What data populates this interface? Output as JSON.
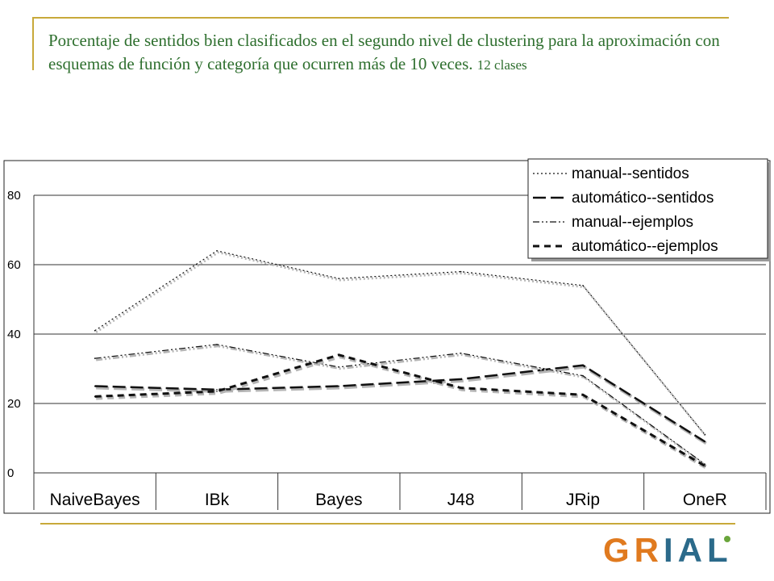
{
  "slide": {
    "title_main": "Porcentaje de sentidos bien clasificados en el segundo nivel de clustering para la aproximación con esquemas de función y categoría que ocurren más de 10 veces.",
    "title_small": "12 clases",
    "accent_color": "#c8a93a",
    "title_color": "#2e6f2e"
  },
  "logo": {
    "text": "GRIAL",
    "gr_color": "#e07a1f",
    "ial_color": "#2b6a8a"
  },
  "chart_data": {
    "type": "line",
    "title": "",
    "xlabel": "",
    "ylabel": "",
    "categories": [
      "NaiveBayes",
      "IBk",
      "Bayes",
      "J48",
      "JRip",
      "OneR"
    ],
    "ylim": [
      0,
      80
    ],
    "yticks": [
      0,
      20,
      40,
      60,
      80
    ],
    "grid": true,
    "legend_position": "top-right",
    "series": [
      {
        "name": "manual--sentidos",
        "values": [
          41,
          64,
          56,
          58,
          54,
          11
        ],
        "dash": "2 3",
        "width": 1.2
      },
      {
        "name": "automático--sentidos",
        "values": [
          25,
          24,
          25,
          27,
          31,
          9
        ],
        "dash": "16 6",
        "width": 2.5
      },
      {
        "name": "manual--ejemplos",
        "values": [
          33,
          37,
          30.5,
          34.5,
          28,
          2.5
        ],
        "dash": "8 3 2 3 2 3",
        "width": 1.2
      },
      {
        "name": "automático--ejemplos",
        "values": [
          22,
          23.5,
          34,
          24.5,
          22.5,
          2
        ],
        "dash": "8 6",
        "width": 3
      }
    ]
  }
}
